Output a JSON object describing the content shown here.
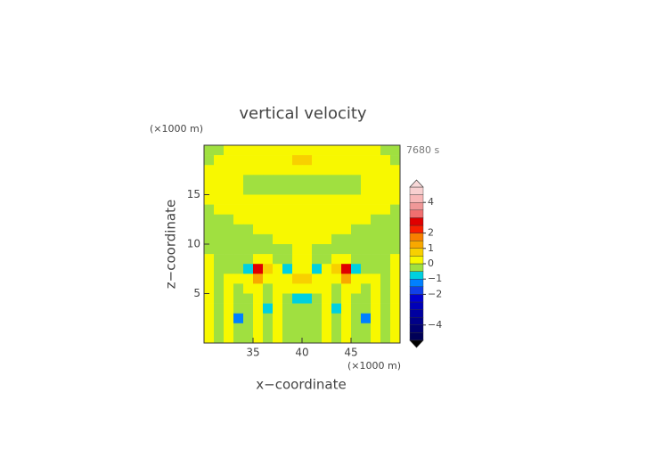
{
  "chart_data": {
    "type": "contour",
    "title": "vertical velocity",
    "time_label": "7680 s",
    "x_label": "x−coordinate",
    "y_label": "z−coordinate",
    "x_unit": "(×1000 m)",
    "y_unit": "(×1000 m)",
    "xlim": [
      30,
      50
    ],
    "ylim": [
      0,
      20
    ],
    "xticks": [
      35,
      40,
      45
    ],
    "yticks": [
      5,
      10,
      15
    ],
    "x": [
      30.5,
      31.5,
      32.5,
      33.5,
      34.5,
      35.5,
      36.5,
      37.5,
      38.5,
      39.5,
      40.5,
      41.5,
      42.5,
      43.5,
      44.5,
      45.5,
      46.5,
      47.5,
      48.5,
      49.5
    ],
    "y": [
      19.5,
      18.5,
      17.5,
      16.5,
      15.5,
      14.5,
      13.5,
      12.5,
      11.5,
      10.5,
      9.5,
      8.5,
      7.5,
      6.5,
      5.5,
      4.5,
      3.5,
      2.5,
      1.5,
      0.5
    ],
    "values": [
      [
        -0.2,
        -0.2,
        0.2,
        0.2,
        0.2,
        0.2,
        0.2,
        0.2,
        0.2,
        0.2,
        0.2,
        0.2,
        0.2,
        0.2,
        0.2,
        0.2,
        0.2,
        0.2,
        -0.2,
        -0.2
      ],
      [
        -0.2,
        0.2,
        0.2,
        0.2,
        0.2,
        0.2,
        0.2,
        0.2,
        0.2,
        0.7,
        0.7,
        0.2,
        0.2,
        0.2,
        0.2,
        0.2,
        0.2,
        0.2,
        0.2,
        -0.2
      ],
      [
        0.2,
        0.2,
        0.2,
        0.2,
        0.2,
        0.2,
        0.2,
        0.2,
        0.2,
        0.2,
        0.2,
        0.2,
        0.2,
        0.2,
        0.2,
        0.2,
        0.2,
        0.2,
        0.2,
        0.2
      ],
      [
        0.2,
        0.2,
        0.2,
        0.2,
        -0.2,
        -0.2,
        -0.2,
        -0.2,
        -0.2,
        -0.2,
        -0.2,
        -0.2,
        -0.2,
        -0.2,
        -0.2,
        -0.2,
        0.2,
        0.2,
        0.2,
        0.2
      ],
      [
        0.2,
        0.2,
        0.2,
        0.2,
        -0.2,
        -0.2,
        -0.2,
        -0.2,
        -0.2,
        -0.2,
        -0.2,
        -0.2,
        -0.2,
        -0.2,
        -0.2,
        -0.2,
        0.2,
        0.2,
        0.2,
        0.2
      ],
      [
        0.2,
        0.2,
        0.2,
        0.2,
        0.2,
        0.2,
        0.2,
        0.2,
        0.2,
        0.2,
        0.2,
        0.2,
        0.2,
        0.2,
        0.2,
        0.2,
        0.2,
        0.2,
        0.2,
        0.2
      ],
      [
        -0.2,
        0.2,
        0.2,
        0.2,
        0.2,
        0.2,
        0.2,
        0.2,
        0.2,
        0.2,
        0.2,
        0.2,
        0.2,
        0.2,
        0.2,
        0.2,
        0.2,
        0.2,
        0.2,
        -0.2
      ],
      [
        -0.2,
        -0.2,
        -0.2,
        0.2,
        0.2,
        0.2,
        0.2,
        0.2,
        0.2,
        0.2,
        0.2,
        0.2,
        0.2,
        0.2,
        0.2,
        0.2,
        0.2,
        -0.2,
        -0.2,
        -0.2
      ],
      [
        -0.2,
        -0.2,
        -0.2,
        -0.2,
        -0.2,
        0.2,
        0.2,
        0.2,
        0.2,
        0.2,
        0.2,
        0.2,
        0.2,
        0.2,
        0.2,
        -0.2,
        -0.2,
        -0.2,
        -0.2,
        -0.2
      ],
      [
        -0.2,
        -0.2,
        -0.2,
        -0.2,
        -0.2,
        -0.2,
        -0.2,
        0.2,
        0.2,
        0.2,
        0.2,
        0.2,
        0.2,
        -0.2,
        -0.2,
        -0.2,
        -0.2,
        -0.2,
        -0.2,
        -0.2
      ],
      [
        -0.2,
        -0.2,
        -0.2,
        -0.2,
        -0.2,
        -0.2,
        -0.2,
        -0.2,
        -0.2,
        0.2,
        0.2,
        -0.2,
        -0.2,
        -0.2,
        -0.2,
        -0.2,
        -0.2,
        -0.2,
        -0.2,
        -0.2
      ],
      [
        0.2,
        -0.2,
        -0.2,
        -0.2,
        -0.2,
        0.2,
        0.2,
        -0.2,
        -0.2,
        0.2,
        0.2,
        -0.2,
        -0.2,
        0.2,
        0.2,
        -0.2,
        -0.2,
        -0.2,
        -0.2,
        0.2
      ],
      [
        0.2,
        -0.2,
        -0.2,
        -0.2,
        -0.7,
        2.6,
        0.7,
        0.2,
        -0.7,
        0.2,
        0.2,
        -0.7,
        0.2,
        0.7,
        2.6,
        -0.7,
        -0.2,
        -0.2,
        -0.2,
        0.2
      ],
      [
        0.2,
        -0.2,
        0.2,
        0.2,
        0.2,
        1.2,
        0.2,
        0.2,
        0.2,
        0.7,
        0.7,
        0.2,
        0.2,
        0.2,
        1.2,
        0.2,
        0.2,
        0.2,
        -0.2,
        0.2
      ],
      [
        0.2,
        -0.2,
        0.2,
        -0.2,
        0.2,
        0.2,
        -0.2,
        0.2,
        0.2,
        0.2,
        0.2,
        0.2,
        0.2,
        -0.2,
        0.2,
        0.2,
        -0.2,
        0.2,
        -0.2,
        0.2
      ],
      [
        0.2,
        -0.2,
        0.2,
        -0.2,
        -0.2,
        0.2,
        -0.2,
        0.2,
        -0.2,
        -0.7,
        -0.7,
        -0.2,
        0.2,
        -0.2,
        0.2,
        -0.2,
        -0.2,
        0.2,
        -0.2,
        0.2
      ],
      [
        0.2,
        -0.2,
        0.2,
        -0.2,
        -0.2,
        0.2,
        -0.7,
        0.2,
        -0.2,
        -0.2,
        -0.2,
        -0.2,
        0.2,
        -0.7,
        0.2,
        -0.2,
        -0.2,
        0.2,
        -0.2,
        0.2
      ],
      [
        0.2,
        -0.2,
        0.2,
        -1.3,
        -0.2,
        0.2,
        -0.2,
        0.2,
        -0.2,
        -0.2,
        -0.2,
        -0.2,
        0.2,
        -0.2,
        0.2,
        -0.2,
        -1.3,
        0.2,
        -0.2,
        0.2
      ],
      [
        0.2,
        -0.2,
        0.2,
        -0.2,
        -0.2,
        0.2,
        -0.2,
        0.2,
        -0.2,
        -0.2,
        -0.2,
        -0.2,
        0.2,
        -0.2,
        0.2,
        -0.2,
        -0.2,
        0.2,
        -0.2,
        0.2
      ],
      [
        0.2,
        -0.2,
        0.2,
        -0.2,
        -0.2,
        0.2,
        -0.2,
        0.2,
        -0.2,
        -0.2,
        -0.2,
        -0.2,
        0.2,
        -0.2,
        0.2,
        -0.2,
        -0.2,
        0.2,
        -0.2,
        0.2
      ]
    ],
    "colorbar": {
      "levels": [
        -5,
        -4.5,
        -4,
        -3.5,
        -3,
        -2.5,
        -2,
        -1.5,
        -1,
        -0.5,
        0,
        0.5,
        1,
        1.5,
        2,
        2.5,
        3,
        3.5,
        4,
        4.5,
        5
      ],
      "colors": [
        "#000058",
        "#000070",
        "#000088",
        "#0000a0",
        "#0000b8",
        "#0000d0",
        "#1040e8",
        "#0080ff",
        "#00d0e0",
        "#a0e040",
        "#f8f800",
        "#f8d000",
        "#f8a800",
        "#f88000",
        "#f82000",
        "#e00000",
        "#f07070",
        "#f09898",
        "#f8b8b8",
        "#f8d0d0"
      ],
      "over_color": "#f8d8d8",
      "under_color": "#000000",
      "ticks": [
        {
          "value": -4,
          "label": "−4"
        },
        {
          "value": -2,
          "label": "−2"
        },
        {
          "value": -1,
          "label": "−1"
        },
        0,
        1,
        2,
        4
      ]
    }
  }
}
